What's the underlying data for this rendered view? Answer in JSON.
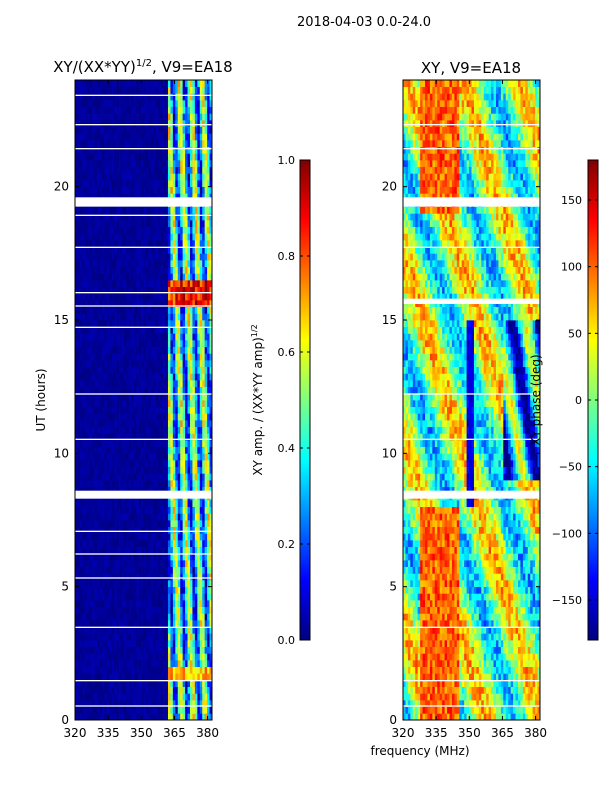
{
  "chart_data": {
    "suptitle": "2018-04-03 0.0-24.0",
    "shared_xlabel": "frequency (MHz)",
    "panels": [
      {
        "type": "heatmap",
        "title_main": "XY/(XX*YY)",
        "title_exp": "1/2",
        "title_rest": ", V9=EA18",
        "xlim": [
          320,
          382
        ],
        "ylim": [
          0,
          24
        ],
        "xticks": [
          {
            "v": 320,
            "label": "320"
          },
          {
            "v": 335,
            "label": "335"
          },
          {
            "v": 350,
            "label": "350"
          },
          {
            "v": 365,
            "label": "365"
          },
          {
            "v": 380,
            "label": "380"
          }
        ],
        "yticks": [
          {
            "v": 0,
            "label": "0"
          },
          {
            "v": 5,
            "label": "5"
          },
          {
            "v": 10,
            "label": "10"
          },
          {
            "v": 15,
            "label": "15"
          },
          {
            "v": 20,
            "label": "20"
          }
        ],
        "ylabel": "UT (hours)",
        "colormap": "jet",
        "colorbar": {
          "min": 0.0,
          "max": 1.0,
          "ticks": [
            {
              "v": 0.0,
              "label": "0.0"
            },
            {
              "v": 0.2,
              "label": "0.2"
            },
            {
              "v": 0.4,
              "label": "0.4"
            },
            {
              "v": 0.6,
              "label": "0.6"
            },
            {
              "v": 0.8,
              "label": "0.8"
            },
            {
              "v": 1.0,
              "label": "1.0"
            }
          ],
          "label_main": "XY amp. / (XX*YY amp)",
          "label_exp": "1/2"
        },
        "blank_bands_hours": [
          [
            8.3,
            8.6
          ],
          [
            19.25,
            19.6
          ],
          [
            1.45,
            1.5
          ],
          [
            0.5,
            0.55
          ],
          [
            3.45,
            3.5
          ],
          [
            5.3,
            5.35
          ],
          [
            6.2,
            6.25
          ],
          [
            7.05,
            7.1
          ],
          [
            10.5,
            10.55
          ],
          [
            12.2,
            12.25
          ],
          [
            14.7,
            14.75
          ],
          [
            15.5,
            15.55
          ],
          [
            16.0,
            16.05
          ],
          [
            17.7,
            17.75
          ],
          [
            18.9,
            18.95
          ],
          [
            21.4,
            21.45
          ],
          [
            22.3,
            22.35
          ],
          [
            23.4,
            23.45
          ]
        ]
      },
      {
        "type": "heatmap",
        "title": "XY, V9=EA18",
        "xlim": [
          320,
          382
        ],
        "ylim": [
          0,
          24
        ],
        "xticks": [
          {
            "v": 320,
            "label": "320"
          },
          {
            "v": 335,
            "label": "335"
          },
          {
            "v": 350,
            "label": "350"
          },
          {
            "v": 365,
            "label": "365"
          },
          {
            "v": 380,
            "label": "380"
          }
        ],
        "yticks": [
          {
            "v": 0,
            "label": "0"
          },
          {
            "v": 5,
            "label": "5"
          },
          {
            "v": 10,
            "label": "10"
          },
          {
            "v": 15,
            "label": "15"
          },
          {
            "v": 20,
            "label": "20"
          }
        ],
        "colormap": "jet",
        "colorbar": {
          "min": -180,
          "max": 180,
          "ticks": [
            {
              "v": -150,
              "label": "−150"
            },
            {
              "v": -100,
              "label": "−100"
            },
            {
              "v": -50,
              "label": "−50"
            },
            {
              "v": 0,
              "label": "0"
            },
            {
              "v": 50,
              "label": "50"
            },
            {
              "v": 100,
              "label": "100"
            },
            {
              "v": 150,
              "label": "150"
            }
          ],
          "label": "XY phase (deg)"
        },
        "blank_bands_hours": [
          [
            8.3,
            8.6
          ],
          [
            19.25,
            19.6
          ],
          [
            15.6,
            15.8
          ],
          [
            1.45,
            1.5
          ],
          [
            3.45,
            3.5
          ],
          [
            0.5,
            0.55
          ],
          [
            10.5,
            10.55
          ],
          [
            12.2,
            12.25
          ],
          [
            17.7,
            17.75
          ],
          [
            21.4,
            21.45
          ],
          [
            22.3,
            22.35
          ]
        ]
      }
    ]
  }
}
